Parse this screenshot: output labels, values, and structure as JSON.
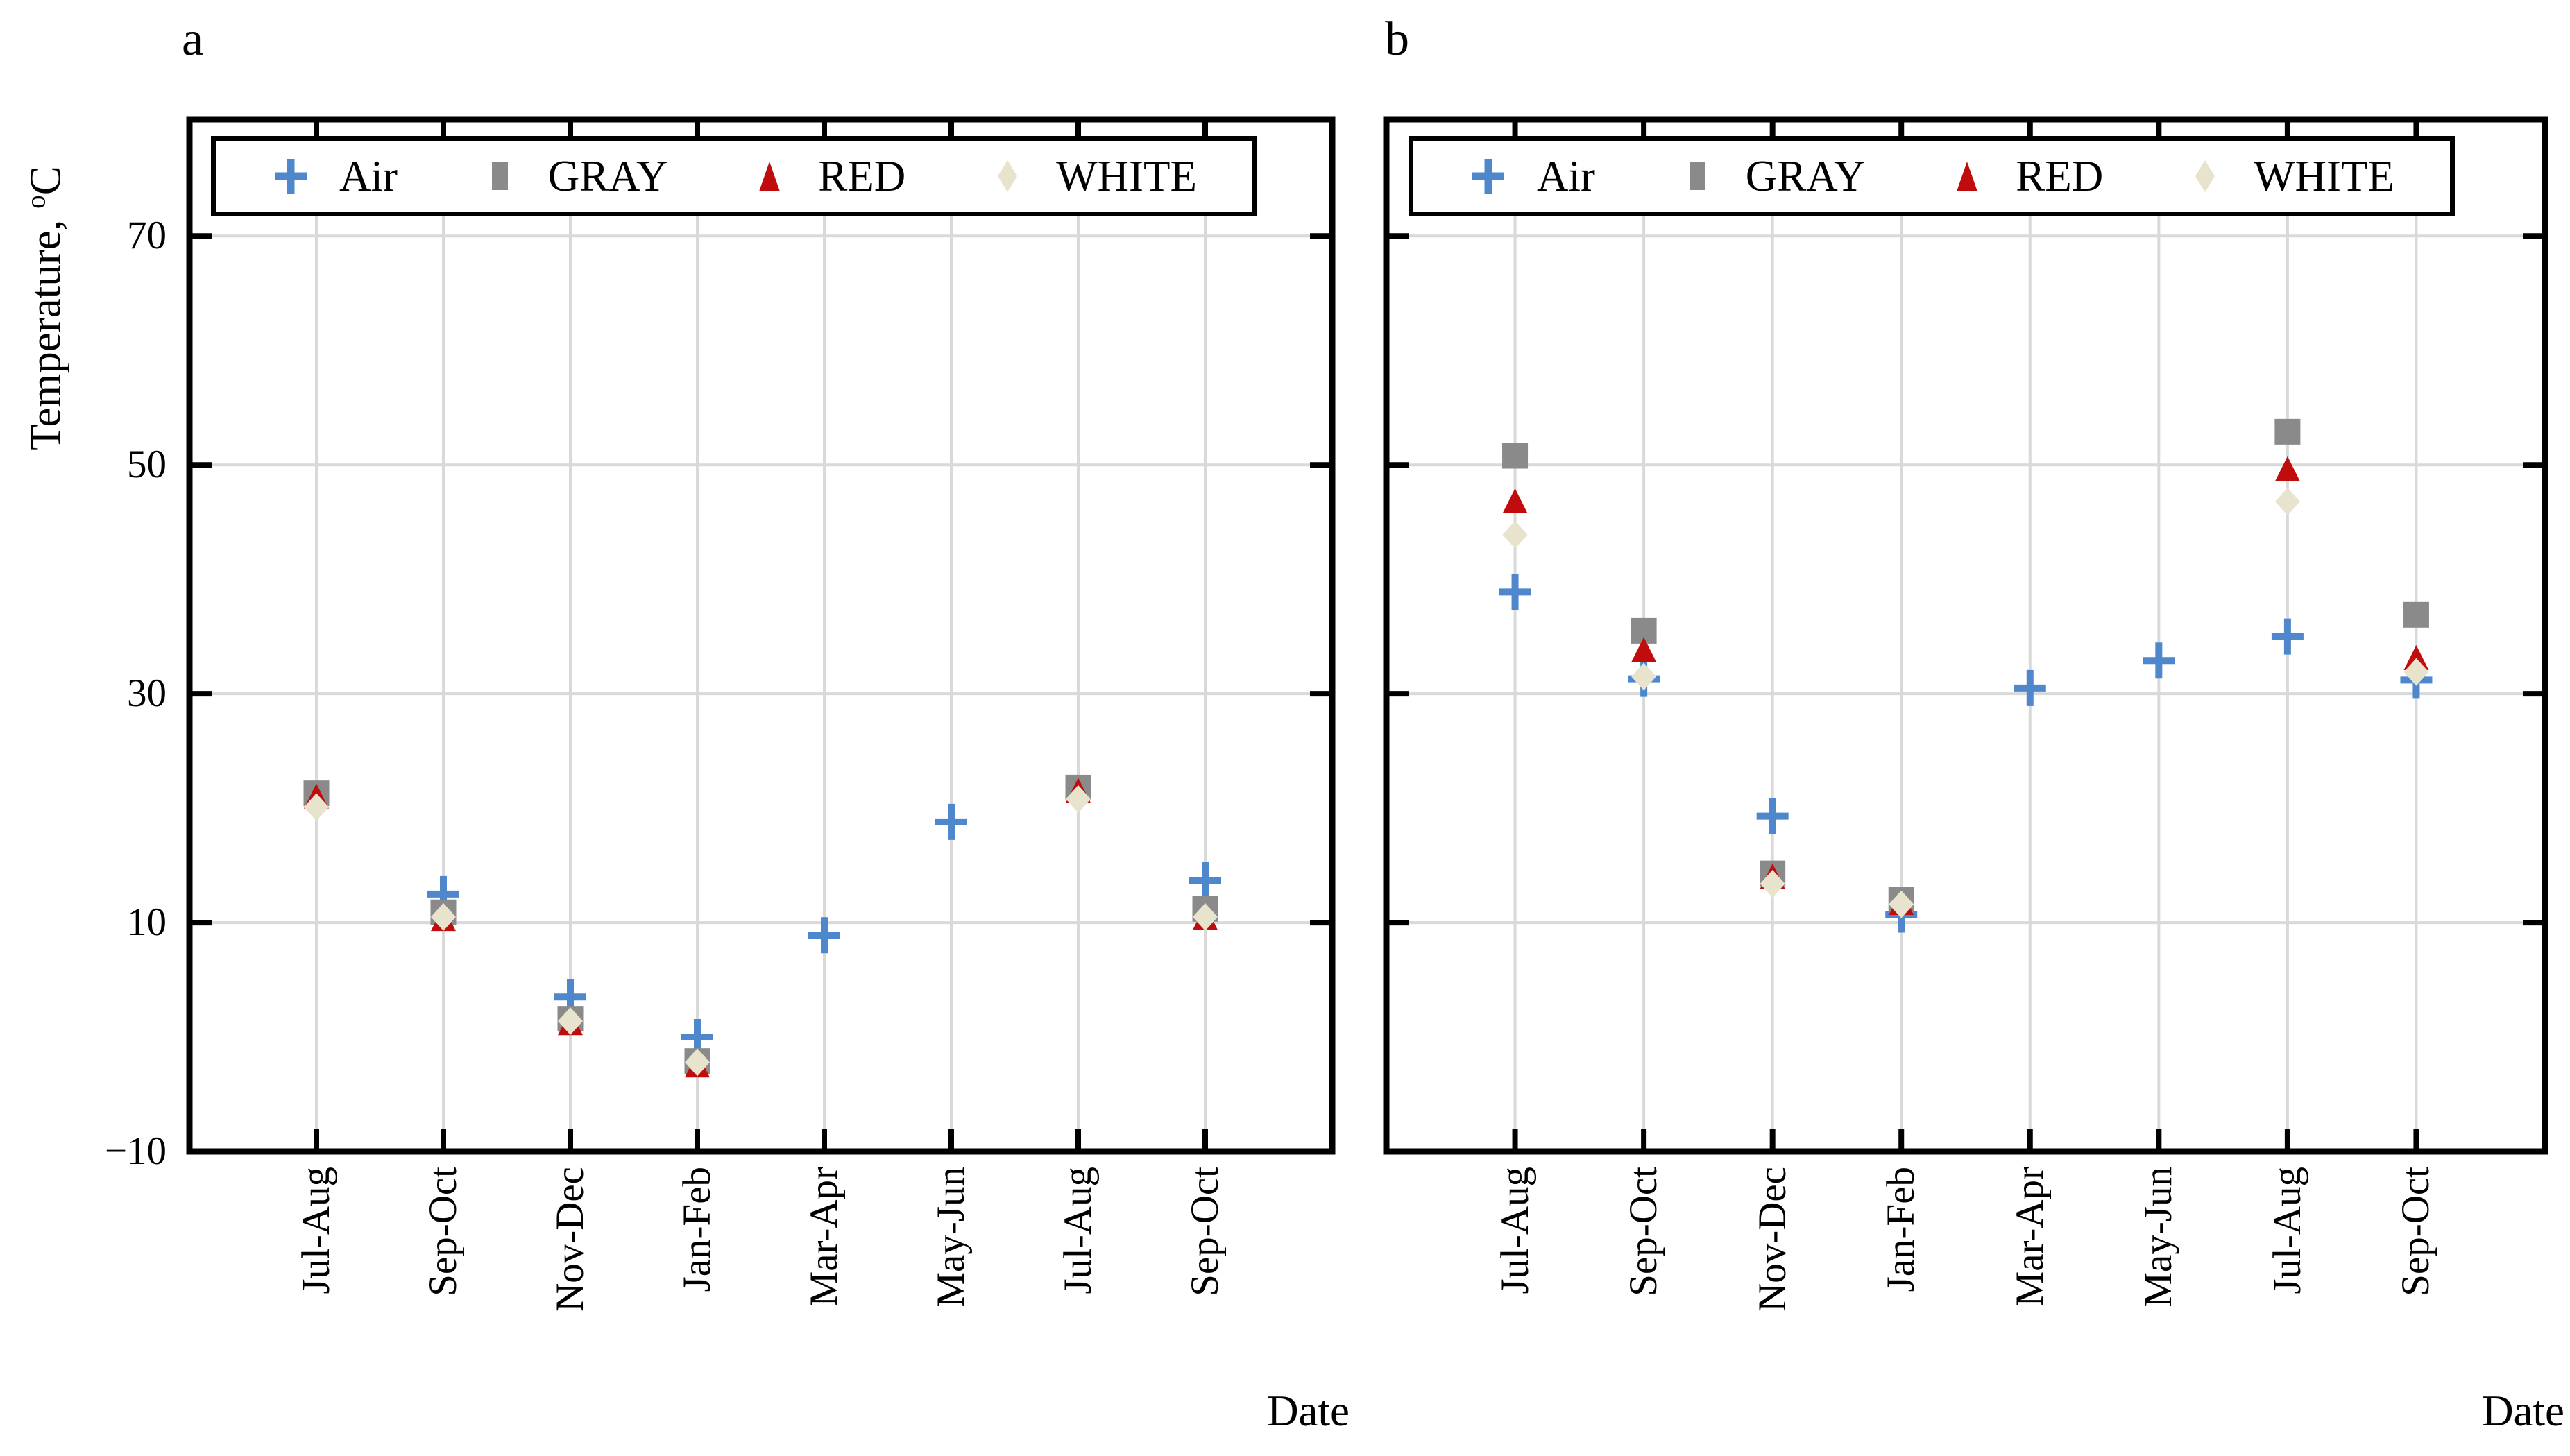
{
  "figure": {
    "panels": [
      {
        "letter": "a"
      },
      {
        "letter": "b"
      }
    ]
  },
  "axes": {
    "x_label": "Date",
    "y_label_prefix": "Temperature, ",
    "y_label_degree": "o",
    "y_label_suffix": "C",
    "y_tick_labels": [
      "70",
      "50",
      "30",
      "10",
      "−10"
    ]
  },
  "legend": {
    "items": [
      {
        "label": "Air",
        "marker": "plus"
      },
      {
        "label": "GRAY",
        "marker": "square"
      },
      {
        "label": "RED",
        "marker": "triangle"
      },
      {
        "label": "WHITE",
        "marker": "diamond"
      }
    ]
  },
  "colors": {
    "air": "#4f87cc",
    "gray": "#8a8a8a",
    "red": "#c00c0c",
    "white": "#e8e3cd",
    "grid": "#d9d9d9",
    "spine": "#000000"
  },
  "chart_data": [
    {
      "type": "scatter",
      "panel": "a",
      "title": "a",
      "xlabel": "Date",
      "ylabel": "Temperature, °C",
      "categories": [
        "Jul-Aug",
        "Sep-Oct",
        "Nov-Dec",
        "Jan-Feb",
        "Mar-Apr",
        "May-Jun",
        "Jul-Aug",
        "Sep-Oct"
      ],
      "ylim": [
        -10,
        80
      ],
      "yticks": [
        70,
        50,
        30,
        10,
        -10
      ],
      "grid": true,
      "legend_position": "top-inside",
      "series": [
        {
          "name": "Air",
          "marker": "plus",
          "values": [
            null,
            12.5,
            3.5,
            0.0,
            8.9,
            18.8,
            null,
            13.7
          ]
        },
        {
          "name": "GRAY",
          "marker": "square",
          "values": [
            21.3,
            10.9,
            1.6,
            -2.1,
            null,
            null,
            21.8,
            11.2
          ]
        },
        {
          "name": "RED",
          "marker": "triangle",
          "values": [
            21.0,
            10.3,
            1.2,
            -2.5,
            null,
            null,
            21.5,
            10.4
          ]
        },
        {
          "name": "WHITE",
          "marker": "diamond",
          "values": [
            20.1,
            10.5,
            1.4,
            -2.2,
            null,
            null,
            20.8,
            10.5
          ]
        }
      ]
    },
    {
      "type": "scatter",
      "panel": "b",
      "title": "b",
      "xlabel": "Date",
      "ylabel": "Temperature, °C",
      "categories": [
        "Jul-Aug",
        "Sep-Oct",
        "Nov-Dec",
        "Jan-Feb",
        "Mar-Apr",
        "May-Jun",
        "Jul-Aug",
        "Sep-Oct"
      ],
      "ylim": [
        -10,
        80
      ],
      "yticks": [
        70,
        50,
        30,
        10,
        -10
      ],
      "grid": true,
      "legend_position": "top-inside",
      "series": [
        {
          "name": "Air",
          "marker": "plus",
          "values": [
            38.9,
            31.3,
            19.3,
            10.7,
            30.5,
            32.9,
            35.0,
            31.2
          ]
        },
        {
          "name": "GRAY",
          "marker": "square",
          "values": [
            50.8,
            35.5,
            14.3,
            12.0,
            null,
            null,
            52.9,
            36.9
          ]
        },
        {
          "name": "RED",
          "marker": "triangle",
          "values": [
            46.8,
            33.8,
            14.0,
            11.7,
            null,
            null,
            49.6,
            33.1
          ]
        },
        {
          "name": "WHITE",
          "marker": "diamond",
          "values": [
            43.9,
            31.5,
            13.4,
            11.6,
            null,
            null,
            46.8,
            31.9
          ]
        }
      ]
    }
  ]
}
